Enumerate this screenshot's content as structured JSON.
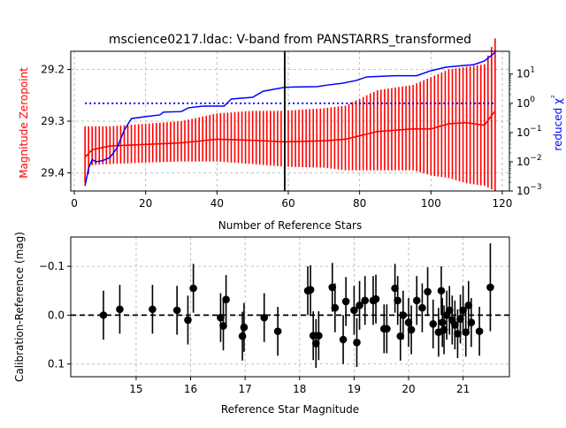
{
  "chart_data": [
    {
      "type": "line",
      "title": "mscience0217.ldac: V-band from PANSTARRS_transformed",
      "xlabel": "Number of Reference Stars",
      "ylabel": "Magnitude Zeropoint",
      "y2label": "reduced χ²",
      "xlim": [
        -1,
        122
      ],
      "ylim": [
        29.435,
        29.165
      ],
      "y_inverted": true,
      "y2lim_log": [
        0.001,
        60
      ],
      "y2_scale": "log",
      "grid": true,
      "xticks": [
        "0",
        "20",
        "40",
        "60",
        "80",
        "100",
        "120"
      ],
      "yticks": [
        "29.2",
        "29.3",
        "29.4"
      ],
      "y2ticks": [
        {
          "base": "10",
          "exp": "1",
          "value": 10
        },
        {
          "base": "10",
          "exp": "0",
          "value": 1
        },
        {
          "base": "10",
          "exp": "−1",
          "value": 0.1
        },
        {
          "base": "10",
          "exp": "−2",
          "value": 0.01
        },
        {
          "base": "10",
          "exp": "−3",
          "value": 0.001
        }
      ],
      "vertical_line_x": 59,
      "reference_chi2": 1.0,
      "zeropoint_series": {
        "color": "#ff0000",
        "x_start": 3,
        "x_end": 118,
        "knots_x": [
          3,
          5,
          10,
          20,
          30,
          40,
          50,
          59,
          70,
          76,
          85,
          95,
          100,
          105,
          110,
          115,
          118
        ],
        "knots_mean": [
          29.37,
          29.355,
          29.348,
          29.345,
          29.342,
          29.335,
          29.337,
          29.34,
          29.338,
          29.335,
          29.32,
          29.315,
          29.315,
          29.305,
          29.303,
          29.308,
          29.28
        ],
        "knots_lo": [
          29.31,
          29.31,
          29.31,
          29.305,
          29.3,
          29.285,
          29.28,
          29.28,
          29.275,
          29.27,
          29.24,
          29.23,
          29.215,
          29.2,
          29.195,
          29.19,
          29.14
        ],
        "knots_hi": [
          29.42,
          29.385,
          29.383,
          29.38,
          29.378,
          29.378,
          29.383,
          29.388,
          29.39,
          29.395,
          29.395,
          29.395,
          29.405,
          29.41,
          29.42,
          29.425,
          29.435
        ]
      },
      "chi2_series": {
        "color": "#0000ff",
        "points": [
          [
            3,
            0.0015
          ],
          [
            4,
            0.006
          ],
          [
            5,
            0.012
          ],
          [
            6,
            0.01
          ],
          [
            8,
            0.011
          ],
          [
            10,
            0.014
          ],
          [
            12,
            0.03
          ],
          [
            14,
            0.12
          ],
          [
            16,
            0.3
          ],
          [
            20,
            0.35
          ],
          [
            24,
            0.4
          ],
          [
            25,
            0.5
          ],
          [
            30,
            0.52
          ],
          [
            32,
            0.7
          ],
          [
            36,
            0.8
          ],
          [
            42,
            0.8
          ],
          [
            44,
            1.4
          ],
          [
            50,
            1.6
          ],
          [
            53,
            2.6
          ],
          [
            59,
            3.5
          ],
          [
            62,
            3.6
          ],
          [
            68,
            3.7
          ],
          [
            71,
            4.2
          ],
          [
            75,
            4.8
          ],
          [
            79,
            6.0
          ],
          [
            82,
            8.0
          ],
          [
            90,
            8.8
          ],
          [
            96,
            8.8
          ],
          [
            100,
            13
          ],
          [
            104,
            17
          ],
          [
            108,
            19
          ],
          [
            112,
            21
          ],
          [
            115,
            28
          ],
          [
            118,
            55
          ]
        ]
      }
    },
    {
      "type": "scatter",
      "xlabel": "Reference Star Magnitude",
      "ylabel": "Calibration-Reference (mag)",
      "xlim": [
        13.8,
        21.85
      ],
      "ylim": [
        0.126,
        -0.16
      ],
      "y_inverted": true,
      "grid": true,
      "xticks": [
        "15",
        "16",
        "17",
        "18",
        "19",
        "20",
        "21"
      ],
      "yticks": [
        "−0.1",
        "0.0",
        "0.1"
      ],
      "zero_line": true,
      "points": [
        {
          "x": 14.4,
          "y": 0.0,
          "err": 0.05
        },
        {
          "x": 14.7,
          "y": -0.012,
          "err": 0.05
        },
        {
          "x": 15.3,
          "y": -0.012,
          "err": 0.05
        },
        {
          "x": 15.75,
          "y": -0.01,
          "err": 0.05
        },
        {
          "x": 15.95,
          "y": 0.01,
          "err": 0.05
        },
        {
          "x": 16.05,
          "y": -0.055,
          "err": 0.05
        },
        {
          "x": 16.55,
          "y": 0.005,
          "err": 0.05
        },
        {
          "x": 16.6,
          "y": 0.022,
          "err": 0.05
        },
        {
          "x": 16.65,
          "y": -0.032,
          "err": 0.05
        },
        {
          "x": 16.95,
          "y": 0.043,
          "err": 0.05
        },
        {
          "x": 16.98,
          "y": 0.025,
          "err": 0.05
        },
        {
          "x": 17.35,
          "y": 0.005,
          "err": 0.05
        },
        {
          "x": 17.6,
          "y": 0.033,
          "err": 0.05
        },
        {
          "x": 18.15,
          "y": -0.05,
          "err": 0.05
        },
        {
          "x": 18.2,
          "y": -0.052,
          "err": 0.05
        },
        {
          "x": 18.25,
          "y": 0.042,
          "err": 0.05
        },
        {
          "x": 18.3,
          "y": 0.058,
          "err": 0.05
        },
        {
          "x": 18.35,
          "y": 0.042,
          "err": 0.05
        },
        {
          "x": 18.6,
          "y": -0.057,
          "err": 0.05
        },
        {
          "x": 18.65,
          "y": -0.015,
          "err": 0.05
        },
        {
          "x": 18.8,
          "y": 0.05,
          "err": 0.05
        },
        {
          "x": 18.85,
          "y": -0.028,
          "err": 0.05
        },
        {
          "x": 19.0,
          "y": -0.01,
          "err": 0.05
        },
        {
          "x": 19.05,
          "y": 0.056,
          "err": 0.05
        },
        {
          "x": 19.1,
          "y": -0.02,
          "err": 0.05
        },
        {
          "x": 19.2,
          "y": -0.03,
          "err": 0.05
        },
        {
          "x": 19.35,
          "y": -0.03,
          "err": 0.05
        },
        {
          "x": 19.4,
          "y": -0.033,
          "err": 0.05
        },
        {
          "x": 19.55,
          "y": 0.028,
          "err": 0.05
        },
        {
          "x": 19.6,
          "y": 0.028,
          "err": 0.05
        },
        {
          "x": 19.75,
          "y": -0.055,
          "err": 0.05
        },
        {
          "x": 19.8,
          "y": -0.03,
          "err": 0.05
        },
        {
          "x": 19.85,
          "y": 0.043,
          "err": 0.05
        },
        {
          "x": 19.9,
          "y": 0.0,
          "err": 0.05
        },
        {
          "x": 20.0,
          "y": 0.015,
          "err": 0.05
        },
        {
          "x": 20.05,
          "y": 0.03,
          "err": 0.05
        },
        {
          "x": 20.15,
          "y": -0.03,
          "err": 0.05
        },
        {
          "x": 20.25,
          "y": -0.015,
          "err": 0.05
        },
        {
          "x": 20.35,
          "y": -0.048,
          "err": 0.05
        },
        {
          "x": 20.45,
          "y": 0.018,
          "err": 0.05
        },
        {
          "x": 20.55,
          "y": 0.035,
          "err": 0.05
        },
        {
          "x": 20.6,
          "y": -0.05,
          "err": 0.05
        },
        {
          "x": 20.62,
          "y": 0.015,
          "err": 0.05
        },
        {
          "x": 20.65,
          "y": 0.03,
          "err": 0.05
        },
        {
          "x": 20.7,
          "y": 0.0,
          "err": 0.05
        },
        {
          "x": 20.75,
          "y": -0.01,
          "err": 0.05
        },
        {
          "x": 20.8,
          "y": 0.01,
          "err": 0.05
        },
        {
          "x": 20.85,
          "y": 0.02,
          "err": 0.05
        },
        {
          "x": 20.9,
          "y": 0.038,
          "err": 0.05
        },
        {
          "x": 20.95,
          "y": 0.008,
          "err": 0.05
        },
        {
          "x": 21.0,
          "y": -0.01,
          "err": 0.05
        },
        {
          "x": 21.05,
          "y": 0.035,
          "err": 0.05
        },
        {
          "x": 21.1,
          "y": -0.02,
          "err": 0.05
        },
        {
          "x": 21.15,
          "y": 0.015,
          "err": 0.05
        },
        {
          "x": 21.3,
          "y": 0.033,
          "err": 0.05
        },
        {
          "x": 21.5,
          "y": -0.057,
          "err": 0.09
        }
      ]
    }
  ]
}
